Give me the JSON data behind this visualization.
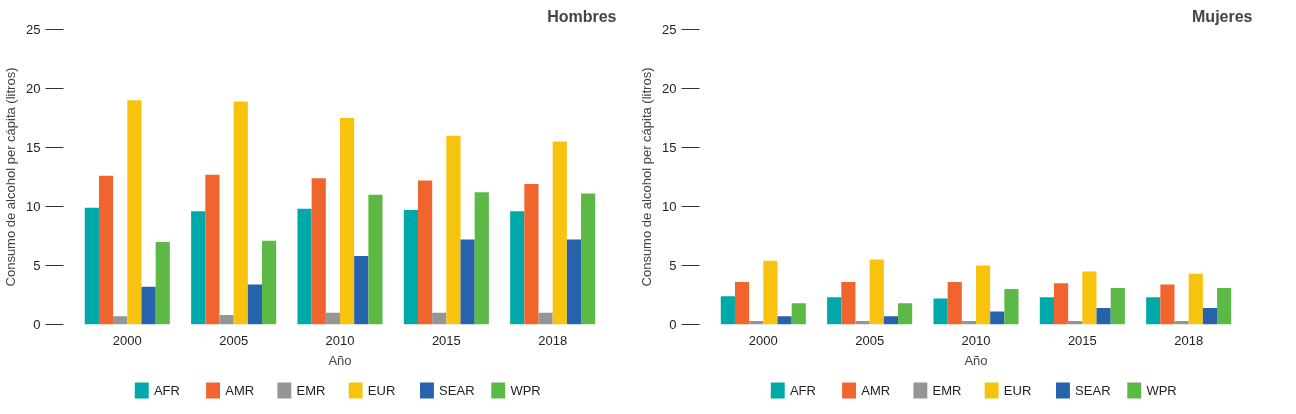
{
  "chart_data": [
    {
      "type": "bar",
      "title": "Hombres",
      "xlabel": "Año",
      "ylabel": "Consumo de alcohol per cápita (litros)",
      "categories": [
        "2000",
        "2005",
        "2010",
        "2015",
        "2018"
      ],
      "ylim": [
        0,
        25
      ],
      "yticks": [
        0,
        5,
        10,
        15,
        20,
        25
      ],
      "legend": "bottom",
      "series": [
        {
          "name": "AFR",
          "color": "#00a9a9",
          "values": [
            9.9,
            9.6,
            9.8,
            9.7,
            9.6
          ]
        },
        {
          "name": "AMR",
          "color": "#f0652d",
          "values": [
            12.6,
            12.7,
            12.4,
            12.2,
            11.9
          ]
        },
        {
          "name": "EMR",
          "color": "#959595",
          "values": [
            0.7,
            0.8,
            1.0,
            1.0,
            1.0
          ]
        },
        {
          "name": "EUR",
          "color": "#f8c30f",
          "values": [
            19.0,
            18.9,
            17.5,
            16.0,
            15.5
          ]
        },
        {
          "name": "SEAR",
          "color": "#2763ad",
          "values": [
            3.2,
            3.4,
            5.8,
            7.2,
            7.2
          ]
        },
        {
          "name": "WPR",
          "color": "#5db946",
          "values": [
            7.0,
            7.1,
            11.0,
            11.2,
            11.1
          ]
        }
      ]
    },
    {
      "type": "bar",
      "title": "Mujeres",
      "xlabel": "Año",
      "ylabel": "Consumo de alcohol per cápita (litros)",
      "categories": [
        "2000",
        "2005",
        "2010",
        "2015",
        "2018"
      ],
      "ylim": [
        0,
        25
      ],
      "yticks": [
        0,
        5,
        10,
        15,
        20,
        25
      ],
      "legend": "bottom",
      "series": [
        {
          "name": "AFR",
          "color": "#00a9a9",
          "values": [
            2.4,
            2.3,
            2.2,
            2.3,
            2.3
          ]
        },
        {
          "name": "AMR",
          "color": "#f0652d",
          "values": [
            3.6,
            3.6,
            3.6,
            3.5,
            3.4
          ]
        },
        {
          "name": "EMR",
          "color": "#959595",
          "values": [
            0.3,
            0.3,
            0.3,
            0.3,
            0.3
          ]
        },
        {
          "name": "EUR",
          "color": "#f8c30f",
          "values": [
            5.4,
            5.5,
            5.0,
            4.5,
            4.3
          ]
        },
        {
          "name": "SEAR",
          "color": "#2763ad",
          "values": [
            0.7,
            0.7,
            1.1,
            1.4,
            1.4
          ]
        },
        {
          "name": "WPR",
          "color": "#5db946",
          "values": [
            1.8,
            1.8,
            3.0,
            3.1,
            3.1
          ]
        }
      ]
    }
  ]
}
